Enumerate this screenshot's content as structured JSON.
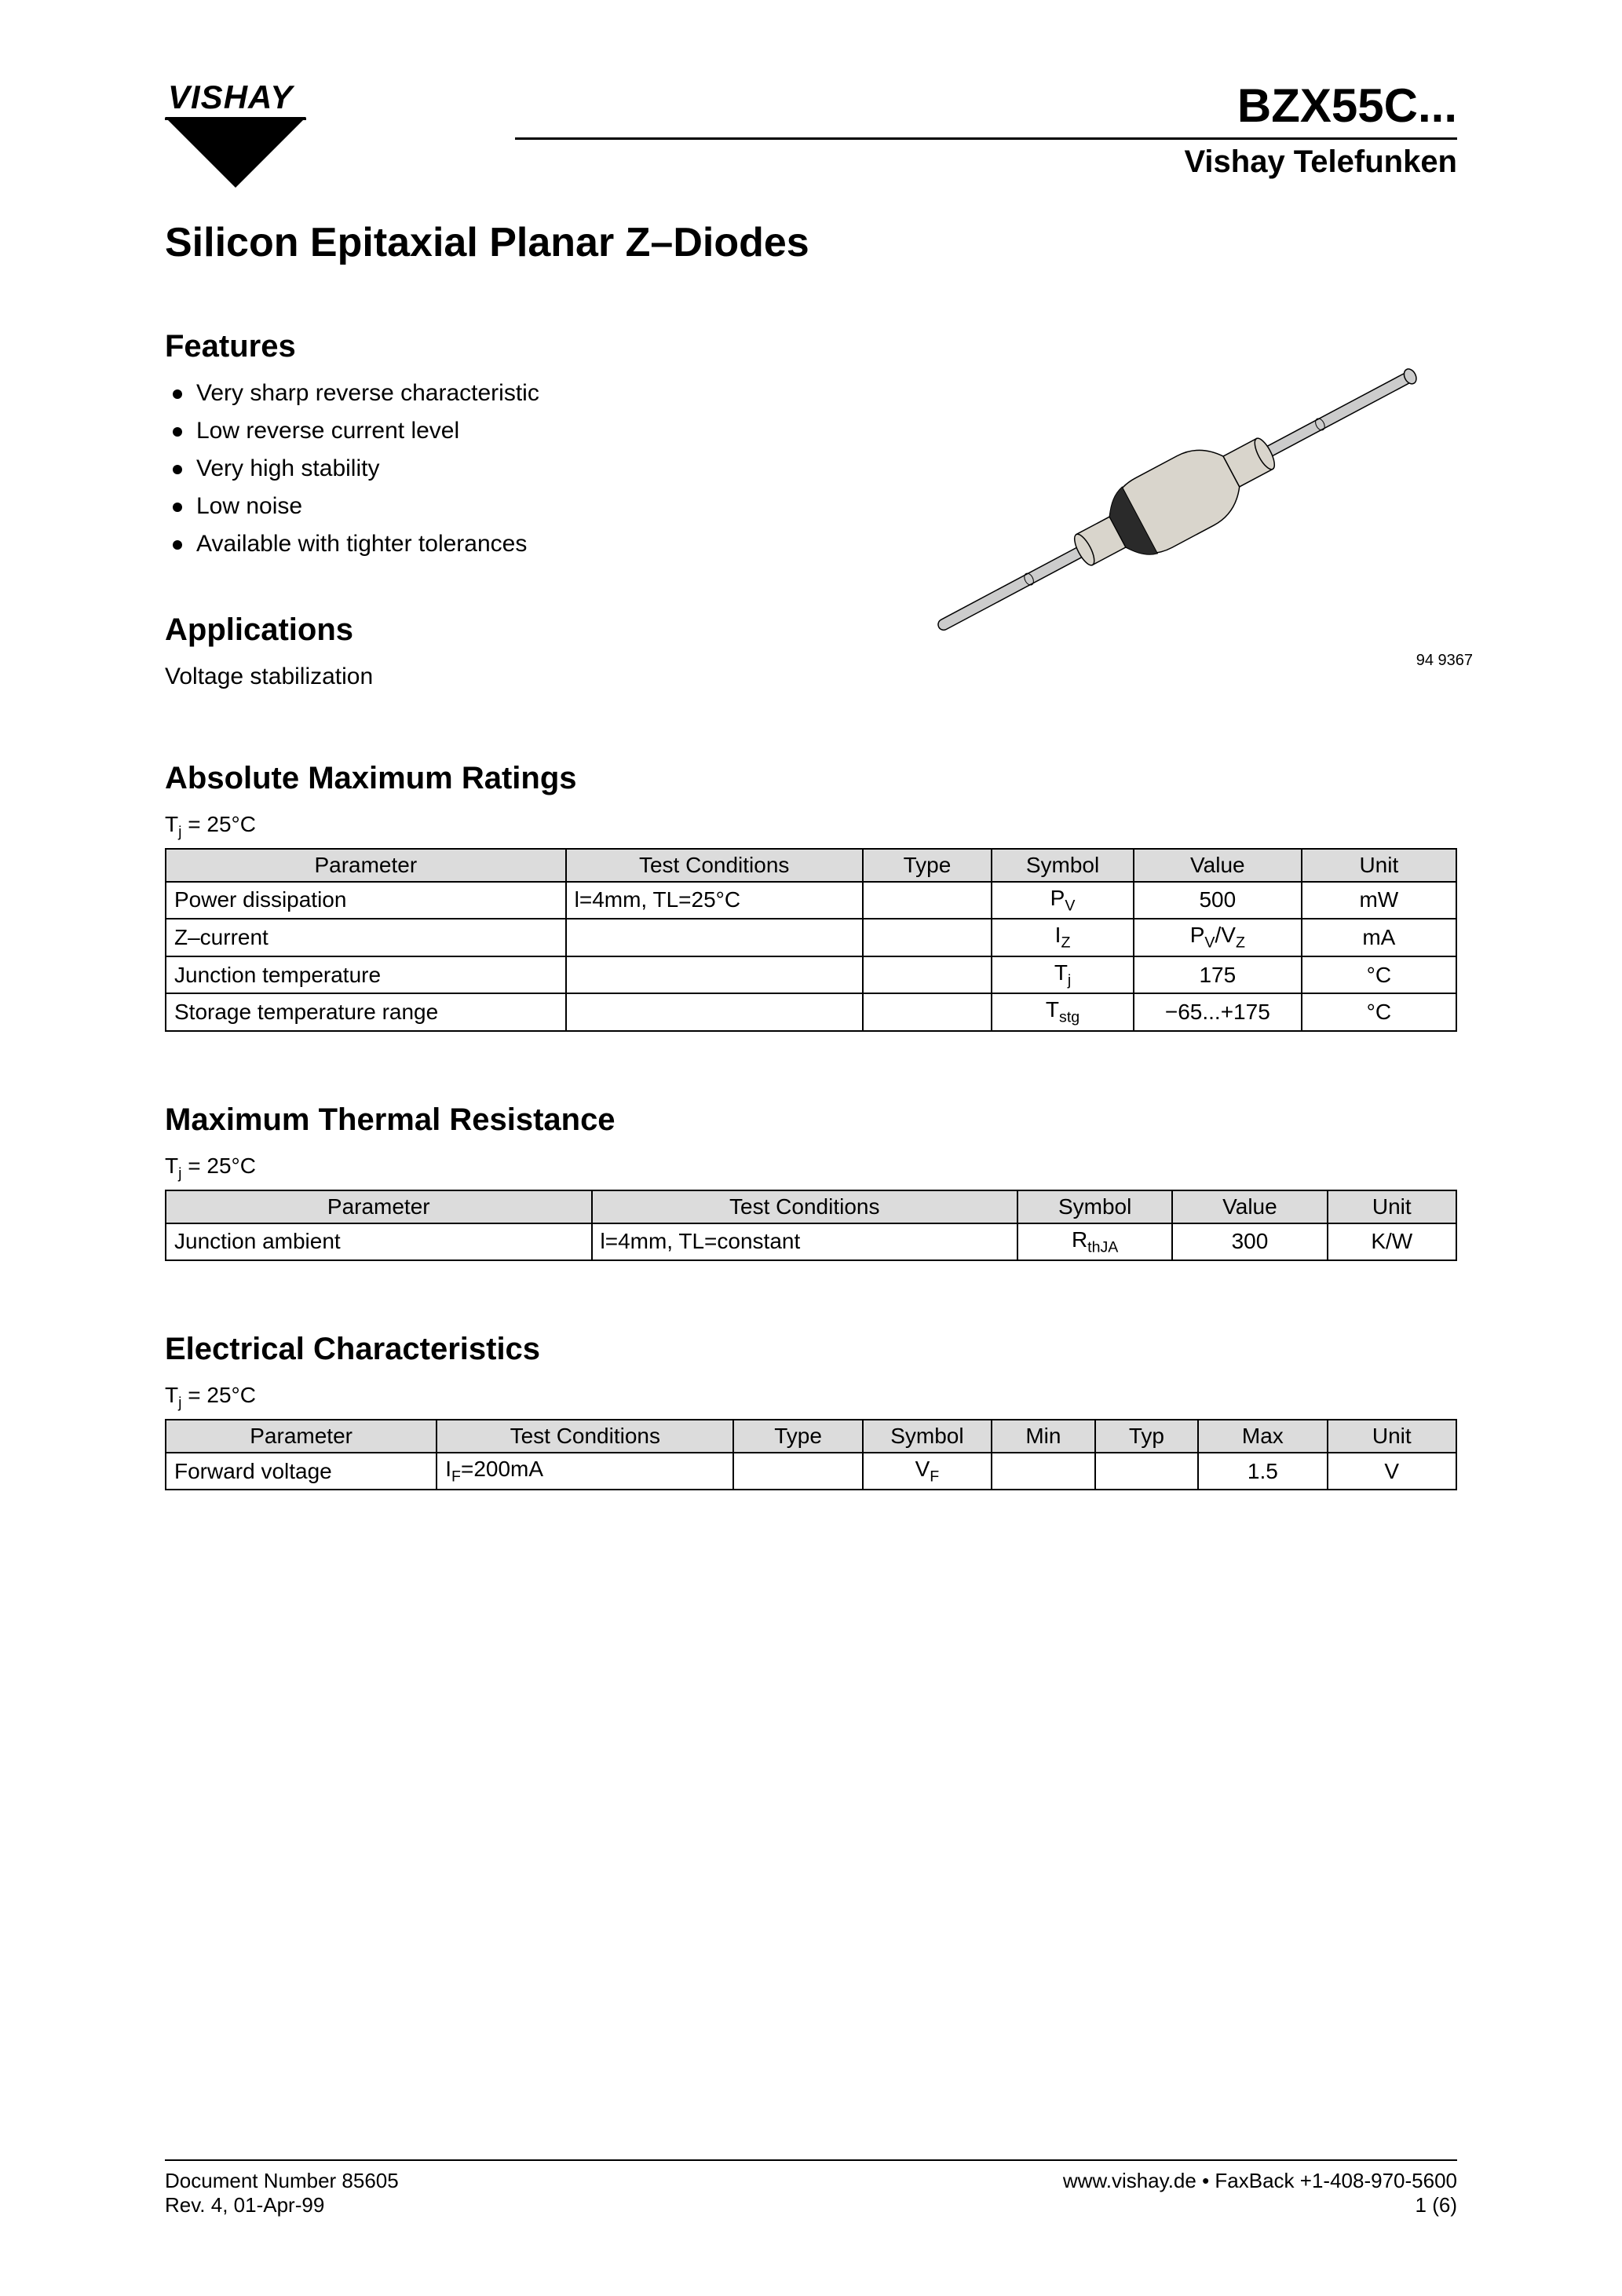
{
  "header": {
    "logo_text": "VISHAY",
    "part_number": "BZX55C...",
    "part_sub": "Vishay Telefunken"
  },
  "main_title": "Silicon Epitaxial Planar Z–Diodes",
  "features": {
    "title": "Features",
    "items": [
      "Very sharp reverse characteristic",
      "Low reverse current level",
      "Very high stability",
      "Low noise",
      "Available with tighter tolerances"
    ]
  },
  "applications": {
    "title": "Applications",
    "text": "Voltage stabilization"
  },
  "figure": {
    "ref": "94 9367",
    "body_color": "#d9d5cc",
    "band_color": "#2a2a2a",
    "lead_color": "#cccccc",
    "outline_color": "#000000"
  },
  "abs_max": {
    "title": "Absolute Maximum Ratings",
    "condition": "Tj = 25°C",
    "columns": [
      "Parameter",
      "Test Conditions",
      "Type",
      "Symbol",
      "Value",
      "Unit"
    ],
    "col_widths": [
      "31%",
      "23%",
      "10%",
      "11%",
      "13%",
      "12%"
    ],
    "rows": [
      {
        "param": "Power dissipation",
        "cond": "l=4mm, TL=25°C",
        "type": "",
        "symbol": "P<sub>V</sub>",
        "value": "500",
        "unit": "mW"
      },
      {
        "param": "Z–current",
        "cond": "",
        "type": "",
        "symbol": "I<sub>Z</sub>",
        "value": "P<sub>V</sub>/V<sub>Z</sub>",
        "unit": "mA"
      },
      {
        "param": "Junction temperature",
        "cond": "",
        "type": "",
        "symbol": "T<sub>j</sub>",
        "value": "175",
        "unit": "°C"
      },
      {
        "param": "Storage temperature range",
        "cond": "",
        "type": "",
        "symbol": "T<sub>stg</sub>",
        "value": "−65...+175",
        "unit": "°C"
      }
    ]
  },
  "thermal": {
    "title": "Maximum Thermal Resistance",
    "condition": "Tj = 25°C",
    "columns": [
      "Parameter",
      "Test Conditions",
      "Symbol",
      "Value",
      "Unit"
    ],
    "col_widths": [
      "33%",
      "33%",
      "12%",
      "12%",
      "10%"
    ],
    "rows": [
      {
        "param": "Junction ambient",
        "cond": "l=4mm, TL=constant",
        "symbol": "R<sub>thJA</sub>",
        "value": "300",
        "unit": "K/W"
      }
    ]
  },
  "electrical": {
    "title": "Electrical Characteristics",
    "condition": "Tj = 25°C",
    "columns": [
      "Parameter",
      "Test Conditions",
      "Type",
      "Symbol",
      "Min",
      "Typ",
      "Max",
      "Unit"
    ],
    "col_widths": [
      "21%",
      "23%",
      "10%",
      "10%",
      "8%",
      "8%",
      "10%",
      "10%"
    ],
    "rows": [
      {
        "param": "Forward voltage",
        "cond": "I<sub>F</sub>=200mA",
        "type": "",
        "symbol": "V<sub>F</sub>",
        "min": "",
        "typ": "",
        "max": "1.5",
        "unit": "V"
      }
    ]
  },
  "footer": {
    "doc_num": "Document Number 85605",
    "rev": "Rev. 4, 01-Apr-99",
    "url": "www.vishay.de • FaxBack +1-408-970-5600",
    "page": "1 (6)"
  },
  "colors": {
    "text": "#000000",
    "background": "#ffffff",
    "table_header_bg": "#dcdcdc",
    "border": "#000000"
  },
  "typography": {
    "body_font": "Arial, Helvetica, sans-serif",
    "part_number_size": 60,
    "part_sub_size": 40,
    "main_title_size": 52,
    "section_title_size": 40,
    "body_size": 30,
    "table_size": 28,
    "footer_size": 26
  }
}
